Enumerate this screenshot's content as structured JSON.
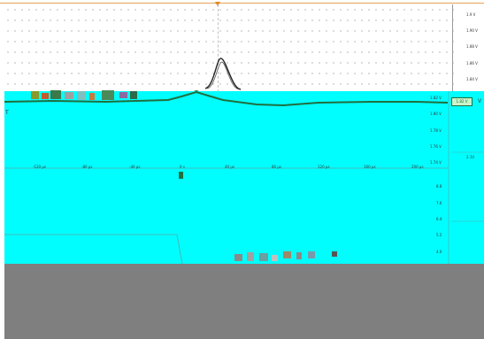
{
  "upper_plot": {
    "y_ticks": [
      "1.9 V",
      "1.90 V",
      "1.88 V",
      "1.86 V",
      "1.84 V"
    ]
  },
  "cyan_plot": {
    "left_marker": "T",
    "y_ticks": [
      "1.82 V",
      "1.80 V",
      "1.78 V",
      "1.76 V",
      "1.74 V"
    ],
    "x_ticks": [
      "-120 µs",
      "-80 µs",
      "-40 µs",
      "0 s",
      "40 µs",
      "80 µs",
      "120 µs",
      "160 µs",
      "200 µs"
    ],
    "right_ticks": [
      "8.8",
      "7.6",
      "6.4",
      "5.2",
      "4.0"
    ]
  },
  "side_panel": {
    "channel_badge": "1.82 V",
    "badge_suffix": "V",
    "readout_right": "2.1V"
  },
  "colors": {
    "cyan": "#00fefe",
    "gray": "#7f7f7f",
    "trace_green": "#1f6f3e",
    "trigger_orange": "#e08a1e"
  }
}
